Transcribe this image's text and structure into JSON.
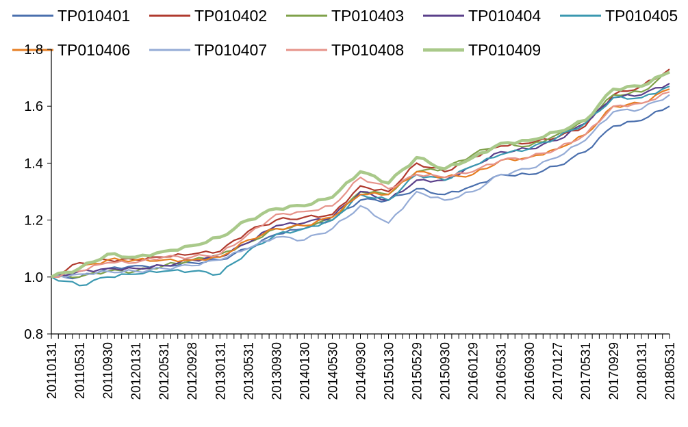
{
  "chart_data": {
    "type": "line",
    "title": "",
    "xlabel": "",
    "ylabel": "",
    "ylim": [
      0.8,
      1.8
    ],
    "yticks": [
      "0.8",
      "1.0",
      "1.2",
      "1.4",
      "1.6",
      "1.8"
    ],
    "grid": false,
    "legend_position": "top",
    "x_tick_labels": [
      "20110131",
      "20110531",
      "20110930",
      "20120131",
      "20120531",
      "20120928",
      "20130131",
      "20130531",
      "20130930",
      "20140130",
      "20140530",
      "20140930",
      "20150130",
      "20150529",
      "20150930",
      "20160129",
      "20160531",
      "20160930",
      "20170127",
      "20170531",
      "20170929",
      "20180131",
      "20180531"
    ],
    "series": [
      {
        "name": "TP010401",
        "color": "#4a6fad",
        "anchors": [
          [
            0,
            1.0
          ],
          [
            4,
            1.0
          ],
          [
            8,
            1.03
          ],
          [
            12,
            1.04
          ],
          [
            16,
            1.04
          ],
          [
            20,
            1.05
          ],
          [
            24,
            1.06
          ],
          [
            28,
            1.1
          ],
          [
            32,
            1.15
          ],
          [
            36,
            1.17
          ],
          [
            40,
            1.2
          ],
          [
            44,
            1.27
          ],
          [
            48,
            1.27
          ],
          [
            52,
            1.31
          ],
          [
            56,
            1.29
          ],
          [
            60,
            1.32
          ],
          [
            64,
            1.36
          ],
          [
            68,
            1.36
          ],
          [
            72,
            1.39
          ],
          [
            76,
            1.44
          ],
          [
            80,
            1.53
          ],
          [
            84,
            1.55
          ],
          [
            88,
            1.6
          ]
        ]
      },
      {
        "name": "TP010402",
        "color": "#b03a2e",
        "anchors": [
          [
            0,
            1.0
          ],
          [
            4,
            1.05
          ],
          [
            8,
            1.06
          ],
          [
            12,
            1.06
          ],
          [
            16,
            1.07
          ],
          [
            20,
            1.08
          ],
          [
            24,
            1.09
          ],
          [
            28,
            1.16
          ],
          [
            32,
            1.2
          ],
          [
            36,
            1.21
          ],
          [
            40,
            1.22
          ],
          [
            44,
            1.32
          ],
          [
            48,
            1.3
          ],
          [
            52,
            1.4
          ],
          [
            56,
            1.37
          ],
          [
            60,
            1.42
          ],
          [
            64,
            1.46
          ],
          [
            68,
            1.47
          ],
          [
            72,
            1.49
          ],
          [
            76,
            1.53
          ],
          [
            80,
            1.64
          ],
          [
            84,
            1.67
          ],
          [
            88,
            1.73
          ]
        ]
      },
      {
        "name": "TP010403",
        "color": "#7fa14a",
        "anchors": [
          [
            0,
            1.0
          ],
          [
            4,
            1.0
          ],
          [
            8,
            1.02
          ],
          [
            12,
            1.02
          ],
          [
            16,
            1.04
          ],
          [
            20,
            1.06
          ],
          [
            24,
            1.08
          ],
          [
            28,
            1.12
          ],
          [
            32,
            1.17
          ],
          [
            36,
            1.18
          ],
          [
            40,
            1.2
          ],
          [
            44,
            1.3
          ],
          [
            48,
            1.29
          ],
          [
            52,
            1.37
          ],
          [
            56,
            1.38
          ],
          [
            60,
            1.43
          ],
          [
            64,
            1.47
          ],
          [
            68,
            1.46
          ],
          [
            72,
            1.5
          ],
          [
            76,
            1.55
          ],
          [
            80,
            1.64
          ],
          [
            84,
            1.65
          ],
          [
            88,
            1.72
          ]
        ]
      },
      {
        "name": "TP010404",
        "color": "#5a3f8a",
        "anchors": [
          [
            0,
            1.0
          ],
          [
            4,
            1.02
          ],
          [
            8,
            1.03
          ],
          [
            12,
            1.03
          ],
          [
            16,
            1.04
          ],
          [
            20,
            1.06
          ],
          [
            24,
            1.07
          ],
          [
            28,
            1.12
          ],
          [
            32,
            1.18
          ],
          [
            36,
            1.19
          ],
          [
            40,
            1.21
          ],
          [
            44,
            1.3
          ],
          [
            48,
            1.27
          ],
          [
            52,
            1.34
          ],
          [
            56,
            1.34
          ],
          [
            60,
            1.39
          ],
          [
            64,
            1.44
          ],
          [
            68,
            1.45
          ],
          [
            72,
            1.48
          ],
          [
            76,
            1.54
          ],
          [
            80,
            1.63
          ],
          [
            84,
            1.64
          ],
          [
            88,
            1.68
          ]
        ]
      },
      {
        "name": "TP010405",
        "color": "#3a98b0",
        "anchors": [
          [
            0,
            1.0
          ],
          [
            4,
            0.97
          ],
          [
            8,
            1.0
          ],
          [
            12,
            1.01
          ],
          [
            16,
            1.02
          ],
          [
            20,
            1.02
          ],
          [
            24,
            1.01
          ],
          [
            28,
            1.09
          ],
          [
            32,
            1.15
          ],
          [
            36,
            1.17
          ],
          [
            40,
            1.2
          ],
          [
            44,
            1.29
          ],
          [
            48,
            1.27
          ],
          [
            52,
            1.36
          ],
          [
            56,
            1.34
          ],
          [
            60,
            1.39
          ],
          [
            64,
            1.43
          ],
          [
            68,
            1.45
          ],
          [
            72,
            1.49
          ],
          [
            76,
            1.54
          ],
          [
            80,
            1.63
          ],
          [
            84,
            1.63
          ],
          [
            88,
            1.67
          ]
        ]
      },
      {
        "name": "TP010406",
        "color": "#e67e22",
        "anchors": [
          [
            0,
            1.0
          ],
          [
            4,
            1.03
          ],
          [
            8,
            1.06
          ],
          [
            12,
            1.06
          ],
          [
            16,
            1.06
          ],
          [
            20,
            1.06
          ],
          [
            24,
            1.07
          ],
          [
            28,
            1.13
          ],
          [
            32,
            1.17
          ],
          [
            36,
            1.18
          ],
          [
            40,
            1.21
          ],
          [
            44,
            1.29
          ],
          [
            48,
            1.29
          ],
          [
            52,
            1.37
          ],
          [
            56,
            1.35
          ],
          [
            60,
            1.36
          ],
          [
            64,
            1.41
          ],
          [
            68,
            1.42
          ],
          [
            72,
            1.45
          ],
          [
            76,
            1.5
          ],
          [
            80,
            1.6
          ],
          [
            84,
            1.61
          ],
          [
            88,
            1.66
          ]
        ]
      },
      {
        "name": "TP010407",
        "color": "#94abd6",
        "anchors": [
          [
            0,
            1.0
          ],
          [
            4,
            1.01
          ],
          [
            8,
            1.02
          ],
          [
            12,
            1.02
          ],
          [
            16,
            1.03
          ],
          [
            20,
            1.04
          ],
          [
            24,
            1.06
          ],
          [
            28,
            1.1
          ],
          [
            32,
            1.14
          ],
          [
            36,
            1.13
          ],
          [
            40,
            1.17
          ],
          [
            44,
            1.25
          ],
          [
            48,
            1.19
          ],
          [
            52,
            1.3
          ],
          [
            56,
            1.27
          ],
          [
            60,
            1.3
          ],
          [
            64,
            1.36
          ],
          [
            68,
            1.38
          ],
          [
            72,
            1.42
          ],
          [
            76,
            1.48
          ],
          [
            80,
            1.58
          ],
          [
            84,
            1.59
          ],
          [
            88,
            1.64
          ]
        ]
      },
      {
        "name": "TP010408",
        "color": "#e6938a",
        "anchors": [
          [
            0,
            1.0
          ],
          [
            4,
            1.02
          ],
          [
            8,
            1.05
          ],
          [
            12,
            1.05
          ],
          [
            16,
            1.07
          ],
          [
            20,
            1.07
          ],
          [
            24,
            1.08
          ],
          [
            28,
            1.15
          ],
          [
            32,
            1.22
          ],
          [
            36,
            1.23
          ],
          [
            40,
            1.25
          ],
          [
            44,
            1.35
          ],
          [
            48,
            1.31
          ],
          [
            52,
            1.36
          ],
          [
            56,
            1.35
          ],
          [
            60,
            1.37
          ],
          [
            64,
            1.41
          ],
          [
            68,
            1.42
          ],
          [
            72,
            1.45
          ],
          [
            76,
            1.5
          ],
          [
            80,
            1.6
          ],
          [
            84,
            1.61
          ],
          [
            88,
            1.65
          ]
        ]
      },
      {
        "name": "TP010409",
        "color": "#a9c98a",
        "anchors": [
          [
            0,
            1.0
          ],
          [
            4,
            1.03
          ],
          [
            8,
            1.08
          ],
          [
            12,
            1.07
          ],
          [
            16,
            1.09
          ],
          [
            20,
            1.11
          ],
          [
            24,
            1.14
          ],
          [
            28,
            1.2
          ],
          [
            32,
            1.24
          ],
          [
            36,
            1.25
          ],
          [
            40,
            1.28
          ],
          [
            44,
            1.37
          ],
          [
            48,
            1.33
          ],
          [
            52,
            1.42
          ],
          [
            56,
            1.38
          ],
          [
            60,
            1.42
          ],
          [
            64,
            1.47
          ],
          [
            68,
            1.48
          ],
          [
            72,
            1.51
          ],
          [
            76,
            1.55
          ],
          [
            80,
            1.66
          ],
          [
            84,
            1.67
          ],
          [
            88,
            1.72
          ]
        ]
      }
    ]
  }
}
